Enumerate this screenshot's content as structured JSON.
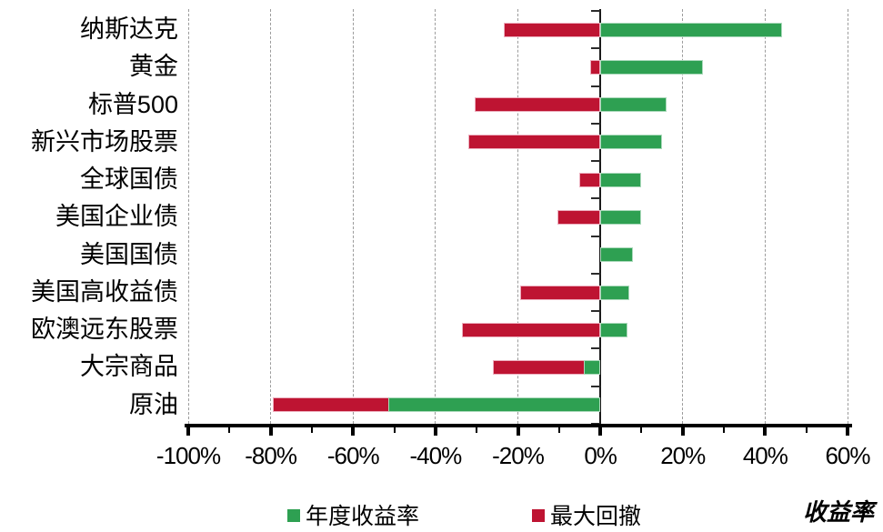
{
  "chart_data": {
    "type": "bar",
    "orientation": "horizontal",
    "xlabel": "收益率",
    "categories": [
      "纳斯达克",
      "黄金",
      "标普500",
      "新兴市场股票",
      "全球国债",
      "美国企业债",
      "美国国债",
      "美国高收益债",
      "欧澳远东股票",
      "大宗商品",
      "原油"
    ],
    "series": [
      {
        "key": "annual-return",
        "name": "年度收益率",
        "color": "#2EA052",
        "border_color": "#ABD9BB",
        "values": [
          44,
          25,
          16,
          15,
          10,
          10,
          8,
          7,
          6.5,
          -4,
          -51.5
        ]
      },
      {
        "key": "max-drawdown",
        "name": "最大回撤",
        "color": "#BE1432",
        "border_color": "#ECAFBE",
        "values": [
          -23.5,
          -2.5,
          -30.5,
          -32,
          -5,
          -10.5,
          0,
          -19.5,
          -33.5,
          -26,
          -79.5
        ]
      }
    ],
    "xlim": [
      -100,
      60
    ],
    "x_tick_values": [
      -100,
      -80,
      -60,
      -40,
      -20,
      0,
      20,
      40,
      60
    ],
    "x_tick_labels": [
      "-100%",
      "-80%",
      "-60%",
      "-40%",
      "-20%",
      "0%",
      "20%",
      "40%",
      "60%"
    ],
    "x_minor_tick_step": 10,
    "gridlines": {
      "style": "dashed",
      "color": "#9c9c9c",
      "at": [
        -100,
        -80,
        -60,
        -40,
        -20,
        20,
        40,
        60
      ]
    },
    "zero_axis_color": "#1a1a1a",
    "legend_position": "bottom"
  }
}
